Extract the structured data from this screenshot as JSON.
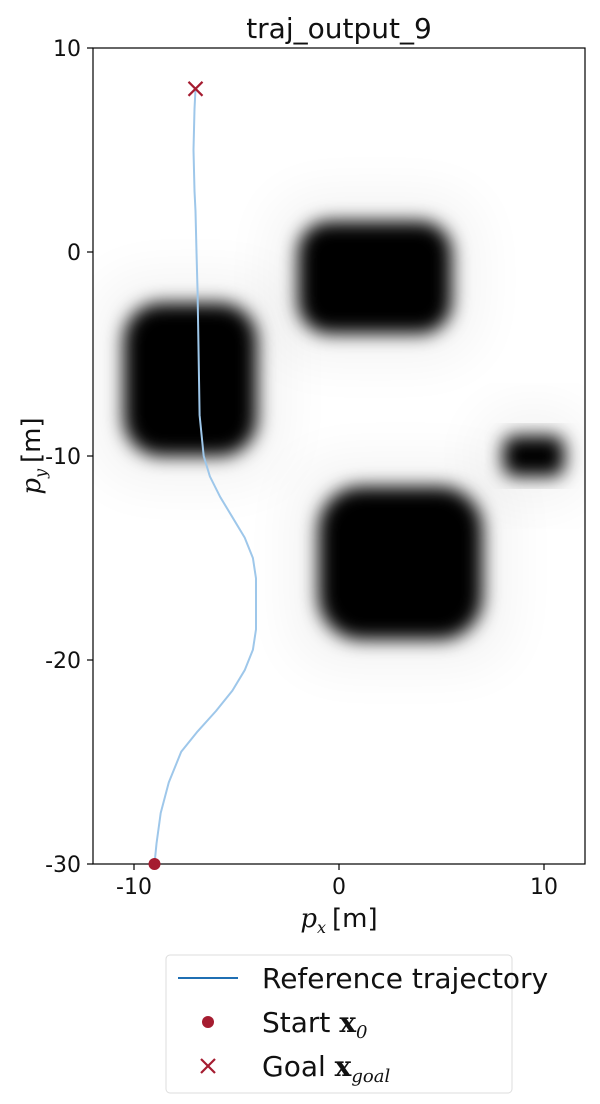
{
  "chart_data": {
    "type": "line",
    "title": "traj_output_9",
    "xlabel": {
      "symbol": "p",
      "sub": "x",
      "unit": "[m]"
    },
    "ylabel": {
      "symbol": "p",
      "sub": "y",
      "unit": "[m]"
    },
    "xlim": [
      -12,
      12
    ],
    "ylim": [
      -30,
      10
    ],
    "xticks": [
      {
        "value": -10,
        "label": "-10"
      },
      {
        "value": 0,
        "label": "0"
      },
      {
        "value": 10,
        "label": "10"
      }
    ],
    "yticks": [
      {
        "value": 10,
        "label": "10"
      },
      {
        "value": 0,
        "label": "0"
      },
      {
        "value": -10,
        "label": "-10"
      },
      {
        "value": -20,
        "label": "-20"
      },
      {
        "value": -30,
        "label": "-30"
      }
    ],
    "grid": false,
    "background_heatmap": {
      "description_colors": {
        "free": "#ffffff",
        "obstacle": "#000000"
      },
      "obstacles": [
        {
          "x_min": -2,
          "x_max": 5.5,
          "y_min": -4,
          "y_max": 1.5
        },
        {
          "x_min": -10.5,
          "x_max": -4,
          "y_min": -10,
          "y_max": -2.5
        },
        {
          "x_min": -1,
          "x_max": 7,
          "y_min": -19,
          "y_max": -11.5
        },
        {
          "x_min": 8,
          "x_max": 11,
          "y_min": -11,
          "y_max": -9
        }
      ]
    },
    "series": [
      {
        "name": "Reference trajectory",
        "color": "#9ec7ea",
        "x": [
          -9,
          -8.9,
          -8.7,
          -8.3,
          -7.7,
          -6.9,
          -6,
          -5.2,
          -4.6,
          -4.2,
          -4.05,
          -4.05,
          -4.2,
          -4.6,
          -5.2,
          -5.8,
          -6.3,
          -6.6,
          -6.8,
          -6.85,
          -6.9,
          -6.95,
          -7,
          -7.05,
          -7.1,
          -7.05,
          -7
        ],
        "y": [
          -30,
          -29,
          -27.5,
          -26,
          -24.5,
          -23.5,
          -22.5,
          -21.5,
          -20.5,
          -19.5,
          -18.5,
          -16,
          -15,
          -14,
          -13,
          -12,
          -11,
          -10,
          -8,
          -5,
          -2,
          0,
          2,
          3,
          5,
          7,
          8
        ]
      }
    ],
    "start": {
      "x": -9,
      "y": -30,
      "color": "#a51c30"
    },
    "goal": {
      "x": -7,
      "y": 8,
      "color": "#a51c30"
    },
    "legend": {
      "placement": "bottom-center, below plot",
      "items": [
        {
          "marker": "line",
          "color": "#1f6fb3",
          "label": "Reference trajectory",
          "math": "",
          "sub": ""
        },
        {
          "marker": "dot",
          "color": "#a51c30",
          "label": "Start ",
          "math": "x",
          "sub": "0"
        },
        {
          "marker": "cross",
          "color": "#a51c30",
          "label": "Goal ",
          "math": "x",
          "sub": "goal"
        }
      ]
    }
  }
}
